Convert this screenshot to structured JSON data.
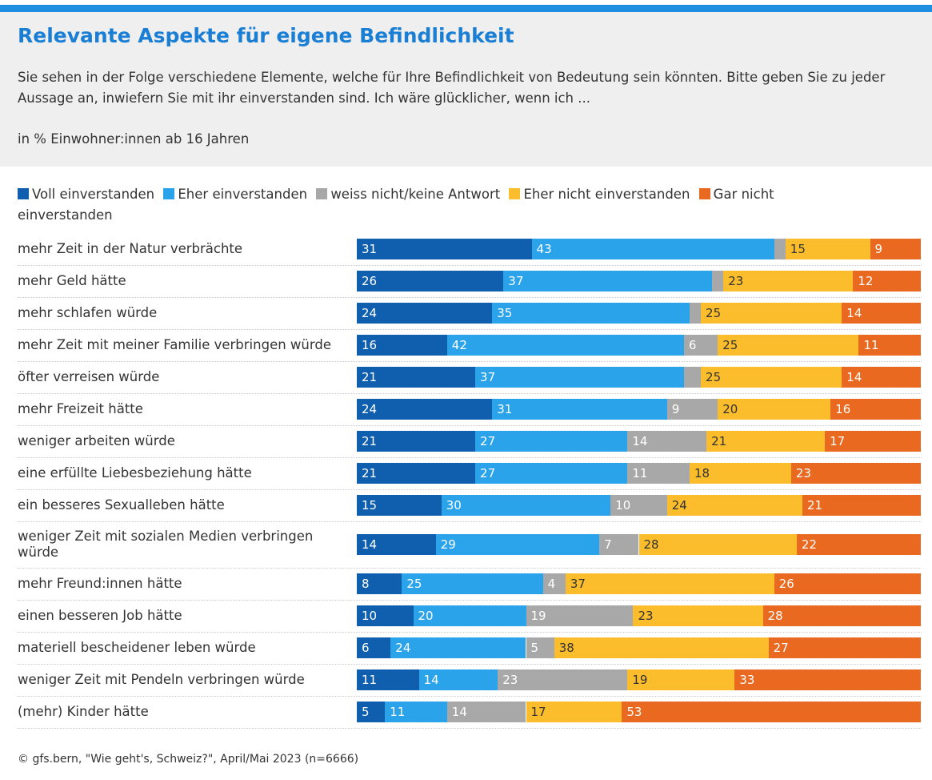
{
  "chart_data": {
    "type": "stacked-bar-horizontal",
    "title": "Relevante Aspekte für eigene Befindlichkeit",
    "subtitle": "Sie sehen in der Folge verschiedene Elemente, welche für Ihre Befindlichkeit von Bedeutung sein könnten. Bitte geben Sie zu jeder Aussage an, inwiefern Sie mit ihr einverstanden sind. Ich wäre glücklicher, wenn ich ...",
    "note": "in % Einwohner:innen ab 16 Jahren",
    "source": "© gfs.bern, \"Wie geht's, Schweiz?\", April/Mai 2023 (n=6666)",
    "xlim": [
      0,
      100
    ],
    "categories": [
      "mehr Zeit in der Natur verbrächte",
      "mehr Geld hätte",
      "mehr schlafen würde",
      "mehr Zeit mit meiner Familie verbringen würde",
      "öfter verreisen würde",
      "mehr Freizeit hätte",
      "weniger arbeiten würde",
      "eine erfüllte Liebesbeziehung hätte",
      "ein besseres Sexualleben hätte",
      "weniger Zeit mit sozialen Medien verbringen würde",
      "mehr Freund:innen hätte",
      "einen besseren Job hätte",
      "materiell bescheidener leben würde",
      "weniger Zeit mit Pendeln verbringen würde",
      "(mehr) Kinder hätte"
    ],
    "series": [
      {
        "name": "Voll einverstanden",
        "color": "#0f5fae",
        "values": [
          31,
          26,
          24,
          16,
          21,
          24,
          21,
          21,
          15,
          14,
          8,
          10,
          6,
          11,
          5
        ]
      },
      {
        "name": "Eher einverstanden",
        "color": "#2aa3ea",
        "values": [
          43,
          37,
          35,
          42,
          37,
          31,
          27,
          27,
          30,
          29,
          25,
          20,
          24,
          14,
          11
        ]
      },
      {
        "name": "weiss nicht/keine Antwort",
        "color": "#a8a8a8",
        "values": [
          2,
          2,
          2,
          6,
          3,
          9,
          14,
          11,
          10,
          7,
          4,
          19,
          5,
          23,
          14
        ]
      },
      {
        "name": "Eher nicht einverstanden",
        "color": "#fbbd2b",
        "values": [
          15,
          23,
          25,
          25,
          25,
          20,
          21,
          18,
          24,
          28,
          37,
          23,
          38,
          19,
          17
        ]
      },
      {
        "name": "Gar nicht einverstanden",
        "color": "#e8691f",
        "values": [
          9,
          12,
          14,
          11,
          14,
          16,
          17,
          23,
          21,
          22,
          26,
          28,
          27,
          33,
          53
        ]
      }
    ]
  }
}
